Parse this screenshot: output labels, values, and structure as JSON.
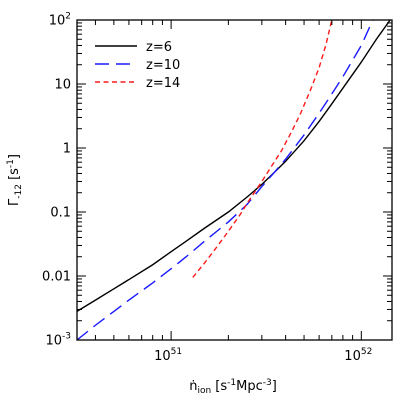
{
  "chart_data": {
    "type": "line",
    "xscale": "log",
    "yscale": "log",
    "xlim": [
      3.2e+50,
      1.45e+52
    ],
    "ylim": [
      0.001,
      100
    ],
    "xlabel": "ṅ_ion [s⁻¹Mpc⁻³]",
    "ylabel": "Γ_-12 [s⁻¹]",
    "xlabel_text": {
      "main": "ṅ",
      "sub": "ion",
      "rest": " [s",
      "sup1": "-1",
      "mid": "Mpc",
      "sup2": "-3",
      "end": "]"
    },
    "ylabel_text": {
      "main": "Γ",
      "sub": "-12",
      "rest": " [s",
      "sup": "-1",
      "end": "]"
    },
    "x_ticks": [
      {
        "value": 1e+51,
        "base": "10",
        "exp": "51"
      },
      {
        "value": 1e+52,
        "base": "10",
        "exp": "52"
      }
    ],
    "y_ticks": [
      {
        "value": 0.001,
        "label": "10",
        "exp": "-3"
      },
      {
        "value": 0.01,
        "label": "0.01"
      },
      {
        "value": 0.1,
        "label": "0.1"
      },
      {
        "value": 1,
        "label": "1"
      },
      {
        "value": 10,
        "label": "10"
      },
      {
        "value": 100,
        "label": "10",
        "exp": "2"
      }
    ],
    "legend_position": "top-left",
    "series": [
      {
        "name": "z=6",
        "color": "#000000",
        "dash": "solid",
        "x": [
          3.2e+50,
          4e+50,
          5e+50,
          6e+50,
          8e+50,
          1e+51,
          1.2e+51,
          1.5e+51,
          2e+51,
          2.5e+51,
          3e+51,
          3.5e+51,
          4e+51,
          5e+51,
          6e+51,
          7e+51,
          8e+51,
          1e+52,
          1.2e+52,
          1.45e+52
        ],
        "y": [
          0.0028,
          0.0042,
          0.0063,
          0.0088,
          0.015,
          0.024,
          0.035,
          0.056,
          0.1,
          0.17,
          0.27,
          0.42,
          0.62,
          1.3,
          2.6,
          4.9,
          8.6,
          22,
          50,
          110
        ]
      },
      {
        "name": "z=10",
        "color": "#1a1aff",
        "dash": "long",
        "x": [
          3.2e+50,
          4e+50,
          5e+50,
          6e+50,
          8e+50,
          1e+51,
          1.2e+51,
          1.5e+51,
          2e+51,
          2.5e+51,
          3e+51,
          3.5e+51,
          4e+51,
          5e+51,
          6e+51,
          7e+51,
          8e+51,
          1e+52,
          1.15e+52
        ],
        "y": [
          0.001,
          0.0017,
          0.0028,
          0.0042,
          0.0078,
          0.013,
          0.02,
          0.035,
          0.07,
          0.13,
          0.25,
          0.42,
          0.67,
          1.6,
          3.5,
          7.0,
          13,
          40,
          100
        ]
      },
      {
        "name": "z=14",
        "color": "#ff1a1a",
        "dash": "short",
        "x": [
          1.3e+51,
          1.5e+51,
          1.7e+51,
          2e+51,
          2.3e+51,
          2.6e+51,
          3e+51,
          3.4e+51,
          3.8e+51,
          4.3e+51,
          4.8e+51,
          5.4e+51,
          6e+51,
          6.5e+51,
          7e+51
        ],
        "y": [
          0.0095,
          0.016,
          0.026,
          0.05,
          0.09,
          0.16,
          0.3,
          0.54,
          0.9,
          1.8,
          3.5,
          8.0,
          18,
          40,
          100
        ]
      }
    ]
  }
}
